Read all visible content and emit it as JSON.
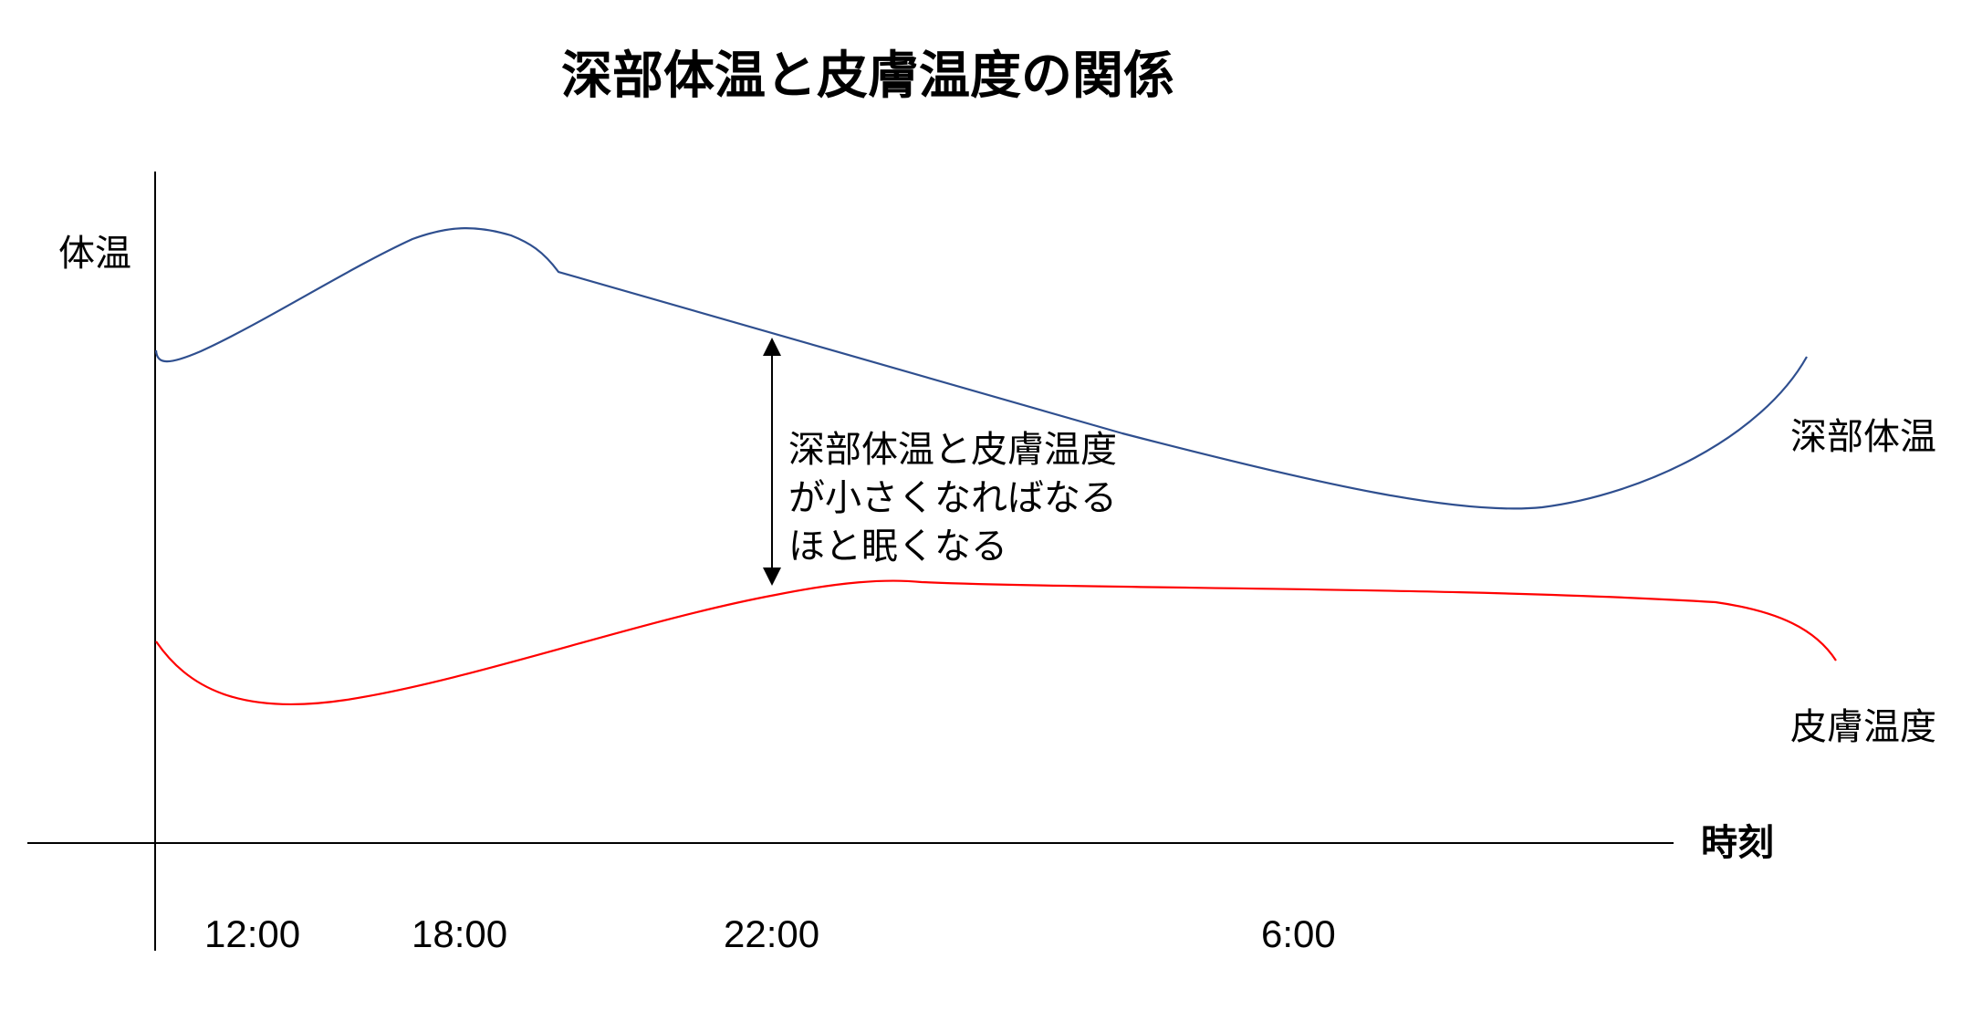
{
  "chart_data": {
    "type": "line",
    "title": "深部体温と皮膚温度の関係",
    "ylabel": "体温",
    "xlabel": "時刻",
    "x_ticks": [
      "12:00",
      "18:00",
      "22:00",
      "6:00"
    ],
    "series": [
      {
        "name": "深部体温",
        "color": "#2f4f8f"
      },
      {
        "name": "皮膚温度",
        "color": "#ff0000"
      }
    ],
    "annotation": {
      "lines": [
        "深部体温と皮膚温度",
        "が小さくなればなる",
        "ほと眠くなる"
      ]
    },
    "grid": false
  }
}
